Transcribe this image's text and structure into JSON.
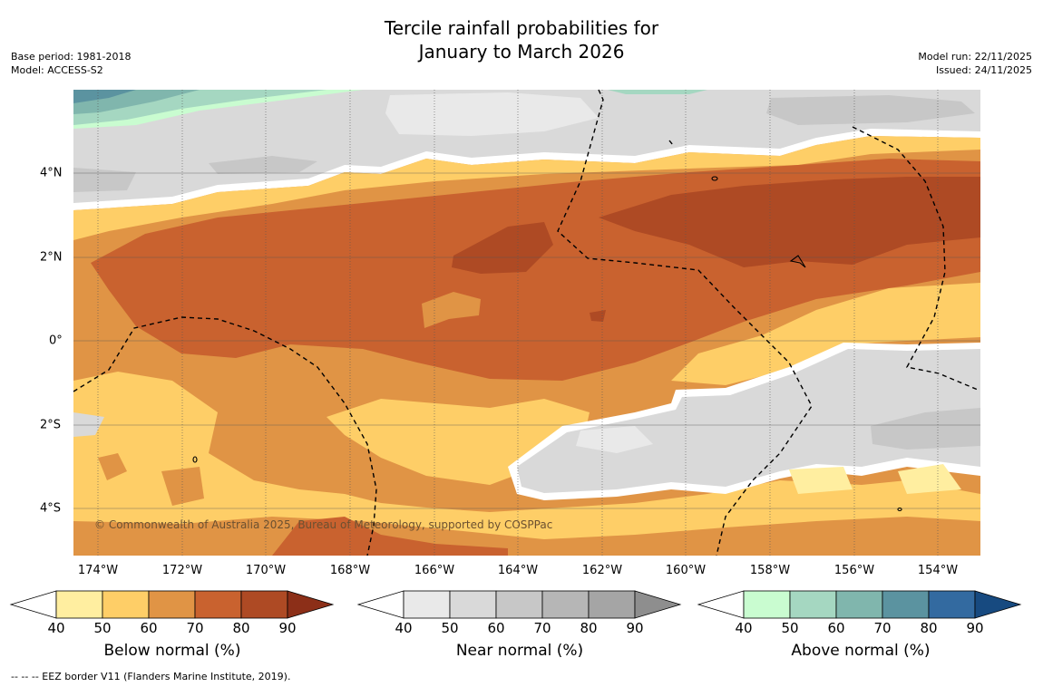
{
  "header": {
    "title_line1": "Tercile rainfall probabilities for",
    "title_line2": "January to March 2026",
    "base_period": "Base period: 1981-2018",
    "model": "Model: ACCESS-S2",
    "model_run": "Model run: 22/11/2025",
    "issued": "Issued: 24/11/2025"
  },
  "map": {
    "lon_labels": [
      "174°W",
      "172°W",
      "170°W",
      "168°W",
      "166°W",
      "164°W",
      "162°W",
      "160°W",
      "158°W",
      "156°W",
      "154°W"
    ],
    "lat_labels": [
      "4°N",
      "2°N",
      "0°",
      "2°S",
      "4°S"
    ],
    "credit": "© Commonwealth of Australia 2025, Bureau of Meteorology, supported by COSPPac"
  },
  "colorbars": [
    {
      "title": "Below normal (%)",
      "ticks": [
        "40",
        "50",
        "60",
        "70",
        "80",
        "90"
      ],
      "colors": [
        "#ffeea0",
        "#fece67",
        "#e09445",
        "#c9622f",
        "#ae4a24",
        "#8c2f18"
      ]
    },
    {
      "title": "Near normal (%)",
      "ticks": [
        "40",
        "50",
        "60",
        "70",
        "80",
        "90"
      ],
      "colors": [
        "#e9e9e9",
        "#d9d9d9",
        "#c7c7c7",
        "#b6b6b6",
        "#a5a5a5",
        "#8e8e8e"
      ]
    },
    {
      "title": "Above normal (%)",
      "ticks": [
        "40",
        "50",
        "60",
        "70",
        "80",
        "90"
      ],
      "colors": [
        "#c9fcd0",
        "#a5d7c1",
        "#80b6ad",
        "#5b93a0",
        "#336aa0",
        "#174a80"
      ]
    }
  ],
  "footnote": "--  --  -- EEZ border V11 (Flanders Marine Institute, 2019).",
  "colors": {
    "below_50": "#fece67",
    "below_60": "#e09445",
    "below_70": "#c9622f",
    "below_80": "#ae4a24",
    "near_40": "#e9e9e9",
    "near_50": "#d9d9d9",
    "near_60": "#c7c7c7",
    "above_40": "#c9fcd0",
    "above_50": "#a5d7c1",
    "above_60": "#80b6ad",
    "above_70": "#5b93a0"
  }
}
